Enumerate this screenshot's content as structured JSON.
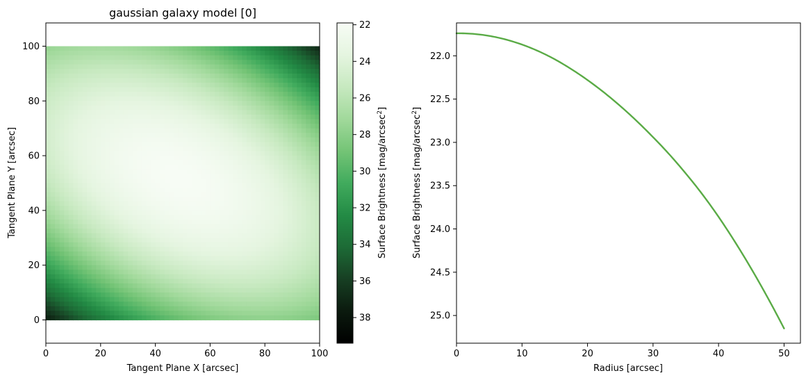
{
  "chart_data": [
    {
      "type": "heatmap",
      "title": "gaussian galaxy model [0]",
      "xlabel": "Tangent Plane X [arcsec]",
      "ylabel": "Tangent Plane Y [arcsec]",
      "xlim": [
        0,
        100
      ],
      "ylim": [
        -8.5,
        108.5
      ],
      "extent": [
        0,
        100,
        0,
        100
      ],
      "xticks": [
        0,
        20,
        40,
        60,
        80,
        100
      ],
      "yticks": [
        0,
        20,
        40,
        60,
        80,
        100
      ],
      "colormap": "Greens_r",
      "model": {
        "center": [
          48,
          52
        ],
        "peak_mag": 21.9,
        "long_axis_direction_deg": -28
      },
      "colorbar": {
        "label": "Surface Brightness [mag/arcsec",
        "label_superscript": "2",
        "label_suffix": "]",
        "range": [
          21.9,
          39.4
        ],
        "ticks": [
          22,
          24,
          26,
          28,
          30,
          32,
          34,
          36,
          38
        ],
        "inverted": true,
        "colors": [
          "#f7fcf5",
          "#e5f5e0",
          "#c7e9c0",
          "#a1d99b",
          "#74c476",
          "#41ab5d",
          "#238b45",
          "#1d6b36",
          "#173f23",
          "#0b1a0e",
          "#000000"
        ]
      },
      "grid": false
    },
    {
      "type": "line",
      "title": "",
      "xlabel": "Radius [arcsec]",
      "ylabel": "Surface Brightness [mag/arcsec",
      "ylabel_superscript": "2",
      "ylabel_suffix": "]",
      "xlim": [
        0,
        52.5
      ],
      "ylim": [
        25.32,
        21.62
      ],
      "y_inverted": true,
      "xticks": [
        0,
        10,
        20,
        30,
        40,
        50
      ],
      "yticks": [
        22.0,
        22.5,
        23.0,
        23.5,
        24.0,
        24.5,
        25.0
      ],
      "series": [
        {
          "color": "#5aab46",
          "x": [
            0,
            5,
            10,
            15,
            20,
            25,
            30,
            35,
            40,
            45,
            50
          ],
          "y": [
            21.74,
            21.77,
            21.87,
            22.04,
            22.28,
            22.58,
            22.94,
            23.36,
            23.86,
            24.46,
            25.15
          ]
        }
      ],
      "grid": false
    }
  ]
}
